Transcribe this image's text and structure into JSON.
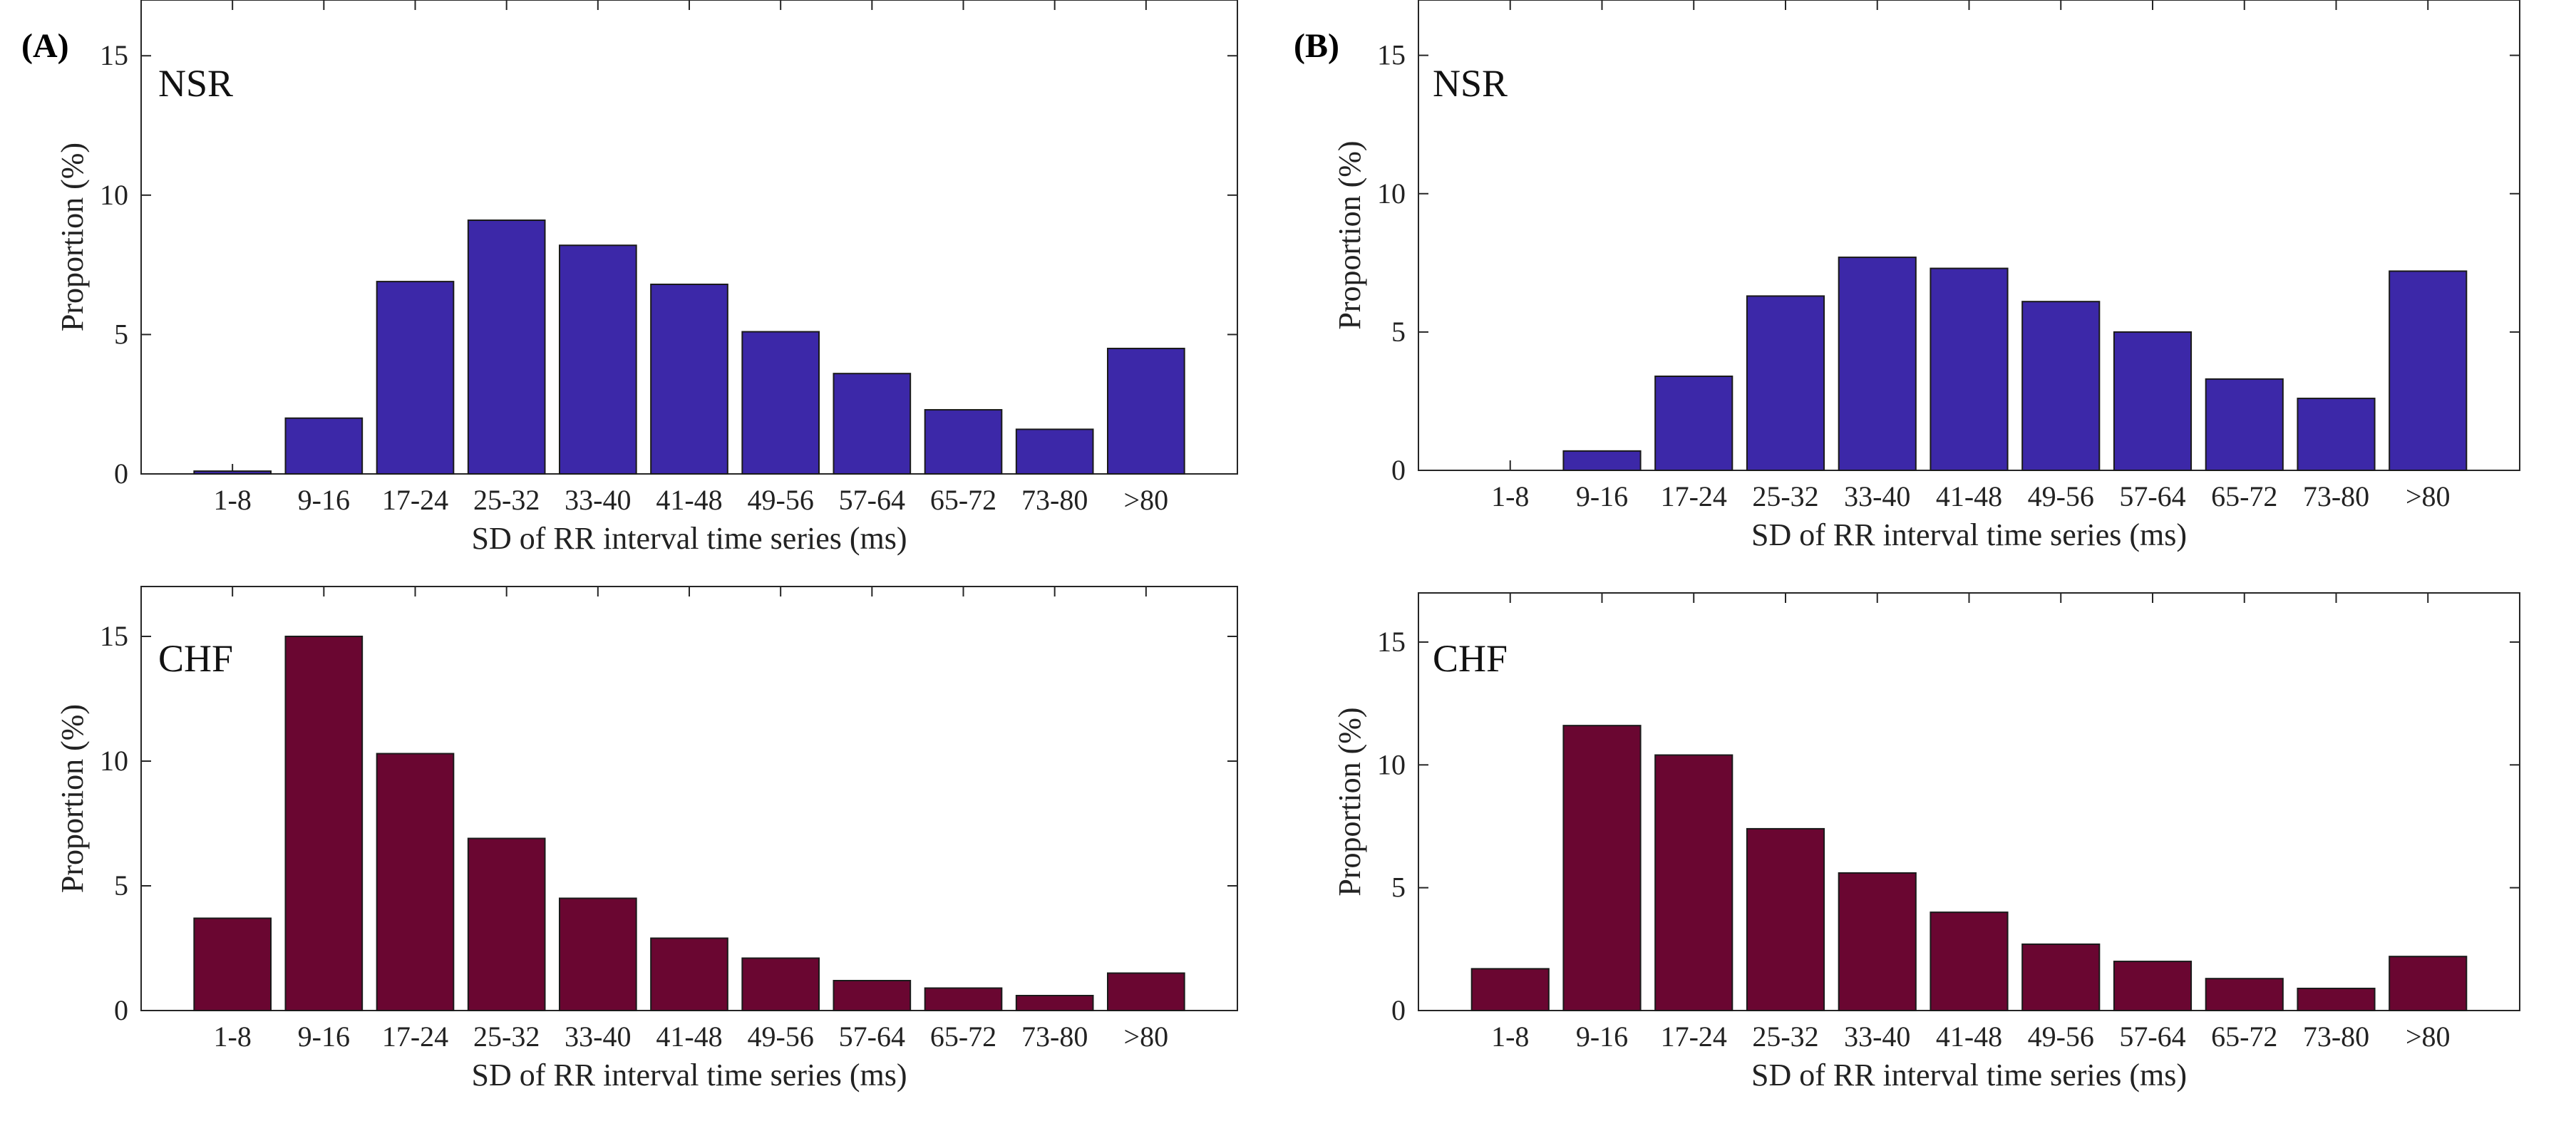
{
  "panel_labels": [
    "(A)",
    "(B)"
  ],
  "chart_data": [
    {
      "panel": "(A)",
      "type": "bar",
      "title": "NSR",
      "xlabel": "SD of RR interval time series (ms)",
      "ylabel": "Proportion (%)",
      "categories": [
        "1-8",
        "9-16",
        "17-24",
        "25-32",
        "33-40",
        "41-48",
        "49-56",
        "57-64",
        "65-72",
        "73-80",
        ">80"
      ],
      "values": [
        0.1,
        2.0,
        6.9,
        9.1,
        8.2,
        6.8,
        5.1,
        3.6,
        2.3,
        1.6,
        4.5
      ],
      "ylim": [
        0,
        17
      ],
      "yticks": [
        0,
        5,
        10,
        15
      ],
      "color": "#3c28a8",
      "grid": false
    },
    {
      "panel": "(B)",
      "type": "bar",
      "title": "NSR",
      "xlabel": "SD of RR interval time series (ms)",
      "ylabel": "Proportion (%)",
      "categories": [
        "1-8",
        "9-16",
        "17-24",
        "25-32",
        "33-40",
        "41-48",
        "49-56",
        "57-64",
        "65-72",
        "73-80",
        ">80"
      ],
      "values": [
        0,
        0.7,
        3.4,
        6.3,
        7.7,
        7.3,
        6.1,
        5.0,
        3.3,
        2.6,
        7.2
      ],
      "ylim": [
        0,
        17
      ],
      "yticks": [
        0,
        5,
        10,
        15
      ],
      "color": "#3c28a8",
      "grid": false
    },
    {
      "panel": "(A)",
      "type": "bar",
      "title": "CHF",
      "xlabel": "SD of RR interval time series (ms)",
      "ylabel": "Proportion (%)",
      "categories": [
        "1-8",
        "9-16",
        "17-24",
        "25-32",
        "33-40",
        "41-48",
        "49-56",
        "57-64",
        "65-72",
        "73-80",
        ">80"
      ],
      "values": [
        3.7,
        15.0,
        10.3,
        6.9,
        4.5,
        2.9,
        2.1,
        1.2,
        0.9,
        0.6,
        1.5
      ],
      "ylim": [
        0,
        17
      ],
      "yticks": [
        0,
        5,
        10,
        15
      ],
      "color": "#6a0631",
      "grid": false
    },
    {
      "panel": "(B)",
      "type": "bar",
      "title": "CHF",
      "xlabel": "SD of RR interval time series (ms)",
      "ylabel": "Proportion (%)",
      "categories": [
        "1-8",
        "9-16",
        "17-24",
        "25-32",
        "33-40",
        "41-48",
        "49-56",
        "57-64",
        "65-72",
        "73-80",
        ">80"
      ],
      "values": [
        1.7,
        11.6,
        10.4,
        7.4,
        5.6,
        4.0,
        2.7,
        2.0,
        1.3,
        0.9,
        2.2
      ],
      "ylim": [
        0,
        17
      ],
      "yticks": [
        0,
        5,
        10,
        15
      ],
      "color": "#6a0631",
      "grid": false
    }
  ]
}
